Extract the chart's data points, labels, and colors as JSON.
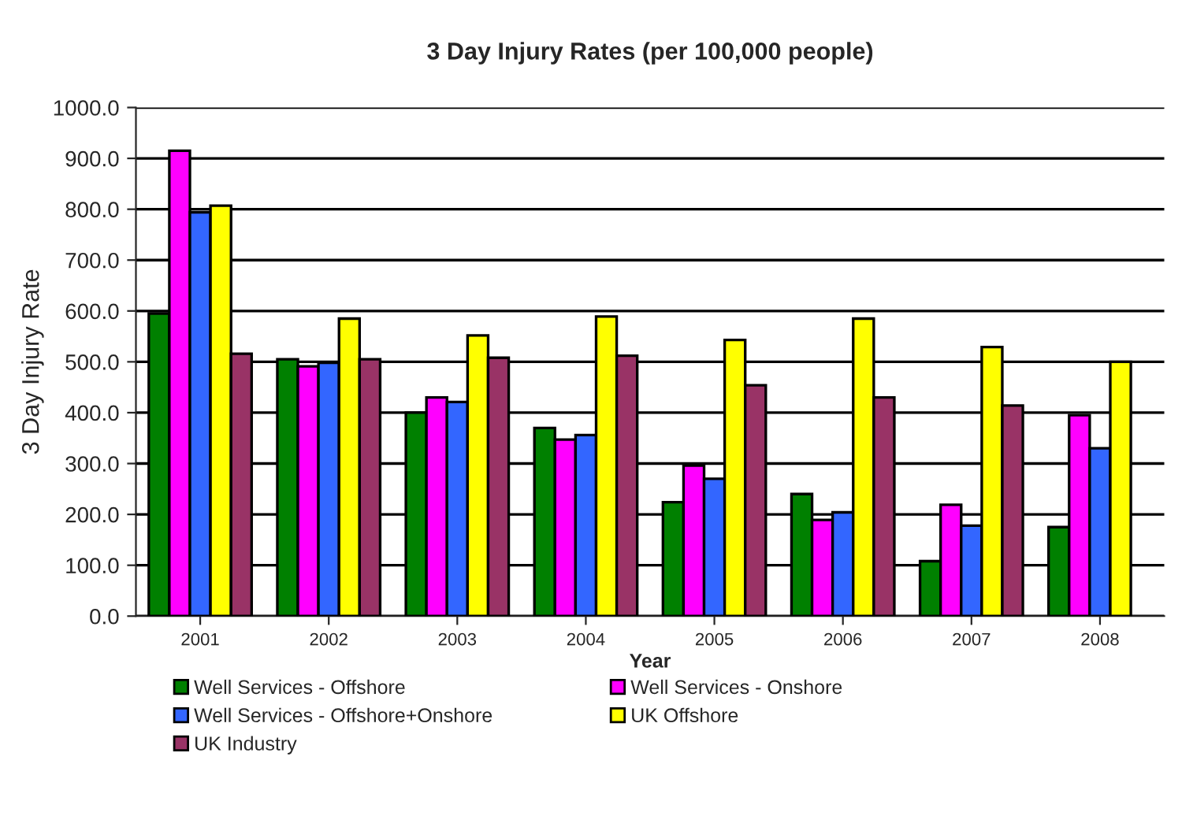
{
  "chart_data": {
    "type": "bar",
    "title": "3 Day Injury Rates (per 100,000 people)",
    "xlabel": "Year",
    "ylabel": "3 Day Injury Rate",
    "categories": [
      "2001",
      "2002",
      "2003",
      "2004",
      "2005",
      "2006",
      "2007",
      "2008"
    ],
    "series": [
      {
        "name": "Well Services - Offshore",
        "color": "#008000",
        "values": [
          595,
          505,
          400,
          370,
          224,
          240,
          108,
          175
        ]
      },
      {
        "name": "Well Services - Onshore",
        "color": "#ff00ff",
        "values": [
          915,
          491,
          430,
          347,
          296,
          189,
          219,
          395
        ]
      },
      {
        "name": "Well Services - Offshore+Onshore",
        "color": "#3366ff",
        "values": [
          794,
          498,
          421,
          356,
          270,
          204,
          178,
          330
        ]
      },
      {
        "name": "UK Offshore",
        "color": "#ffff00",
        "values": [
          807,
          585,
          552,
          589,
          543,
          585,
          529,
          500
        ]
      },
      {
        "name": "UK Industry",
        "color": "#993366",
        "values": [
          516,
          505,
          508,
          512,
          454,
          430,
          414,
          null
        ]
      }
    ],
    "ylim": [
      0,
      1000
    ],
    "yticks": [
      {
        "value": 0,
        "label": "0.0"
      },
      {
        "value": 100,
        "label": "100.0"
      },
      {
        "value": 200,
        "label": "200.0"
      },
      {
        "value": 300,
        "label": "300.0"
      },
      {
        "value": 400,
        "label": "400.0"
      },
      {
        "value": 500,
        "label": "500.0"
      },
      {
        "value": 600,
        "label": "600.0"
      },
      {
        "value": 700,
        "label": "700.0"
      },
      {
        "value": 800,
        "label": "800.0"
      },
      {
        "value": 900,
        "label": "900.0"
      },
      {
        "value": 1000,
        "label": "1000.0"
      }
    ],
    "grid": "y",
    "legend": "bottom"
  }
}
